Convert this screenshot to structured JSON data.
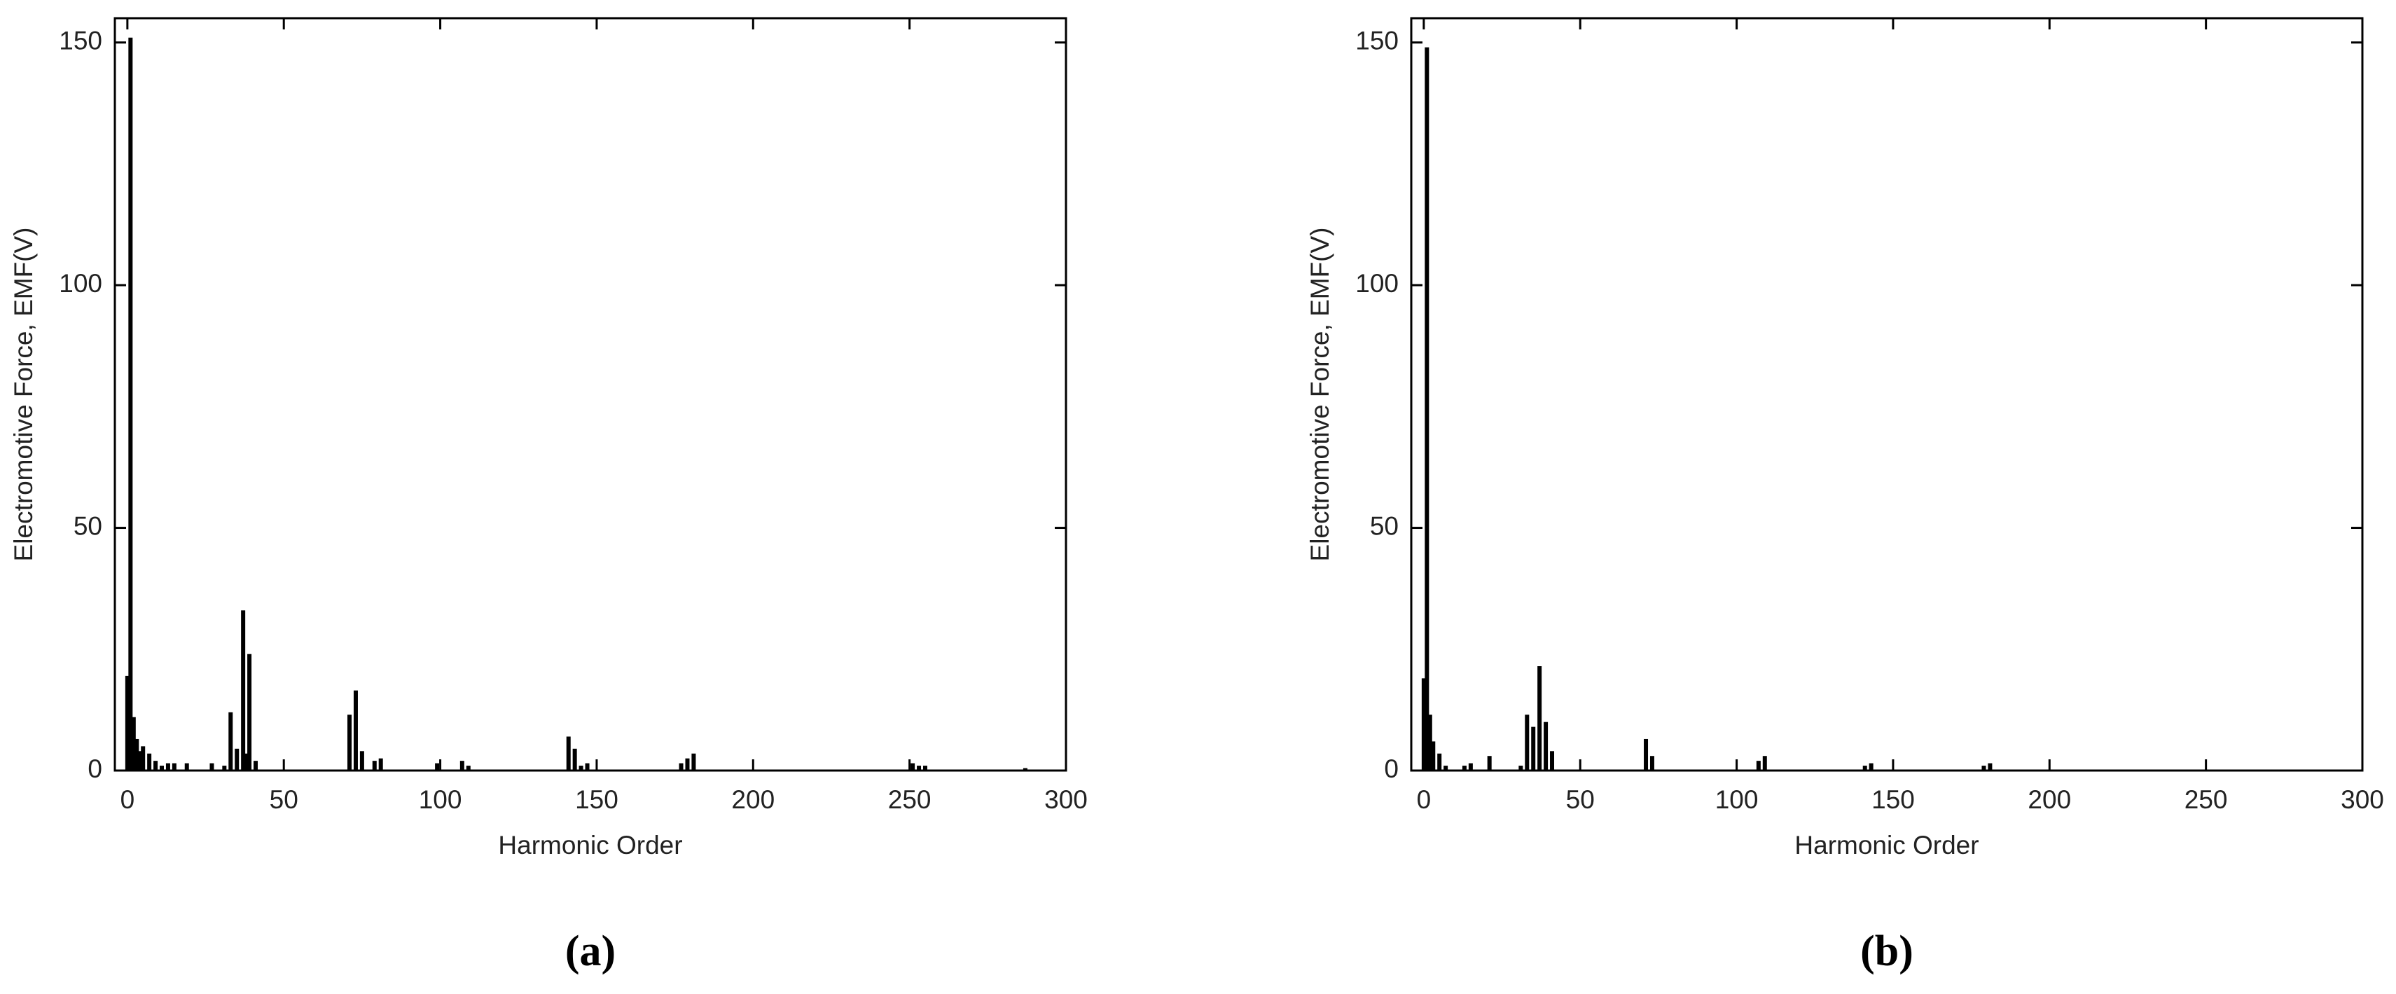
{
  "chart_data": [
    {
      "type": "bar",
      "xlabel": "Harmonic Order",
      "ylabel": "Electromotive Force, EMF(V)",
      "caption": "(a)",
      "color": "#000000",
      "x": [
        0,
        1,
        2,
        3,
        4,
        5,
        7,
        9,
        11,
        13,
        15,
        19,
        27,
        31,
        33,
        35,
        37,
        38,
        39,
        41,
        71,
        73,
        75,
        79,
        81,
        99,
        107,
        109,
        141,
        143,
        145,
        147,
        177,
        179,
        181,
        251,
        253,
        255,
        287
      ],
      "values": [
        19.5,
        151,
        11,
        6.5,
        4,
        5,
        3.5,
        2,
        1,
        1.5,
        1.5,
        1.5,
        1.5,
        1,
        12,
        4.5,
        33,
        3.5,
        24,
        2,
        11.5,
        16.5,
        4,
        2,
        2.5,
        1.5,
        2,
        1,
        7,
        4.5,
        1,
        1.5,
        1.5,
        2.5,
        3.5,
        1.5,
        1,
        1,
        0.5
      ],
      "xlim": [
        -4,
        300
      ],
      "ylim": [
        0,
        155
      ],
      "xticks": [
        0,
        50,
        100,
        150,
        200,
        250,
        300
      ],
      "yticks": [
        0,
        50,
        100,
        150
      ]
    },
    {
      "type": "bar",
      "xlabel": "Harmonic Order",
      "ylabel": "Electromotive Force, EMF(V)",
      "caption": "(b)",
      "color": "#000000",
      "x": [
        0,
        1,
        2,
        3,
        5,
        7,
        13,
        15,
        21,
        31,
        33,
        35,
        37,
        39,
        41,
        71,
        73,
        107,
        109,
        141,
        143,
        179,
        181
      ],
      "values": [
        19,
        149,
        11.5,
        6,
        3.5,
        1,
        1,
        1.5,
        3,
        1,
        11.5,
        9,
        21.5,
        10,
        4,
        6.5,
        3,
        2,
        3,
        1,
        1.5,
        1,
        1.5
      ],
      "xlim": [
        -4,
        300
      ],
      "ylim": [
        0,
        155
      ],
      "xticks": [
        0,
        50,
        100,
        150,
        200,
        250,
        300
      ],
      "yticks": [
        0,
        50,
        100,
        150
      ]
    }
  ]
}
